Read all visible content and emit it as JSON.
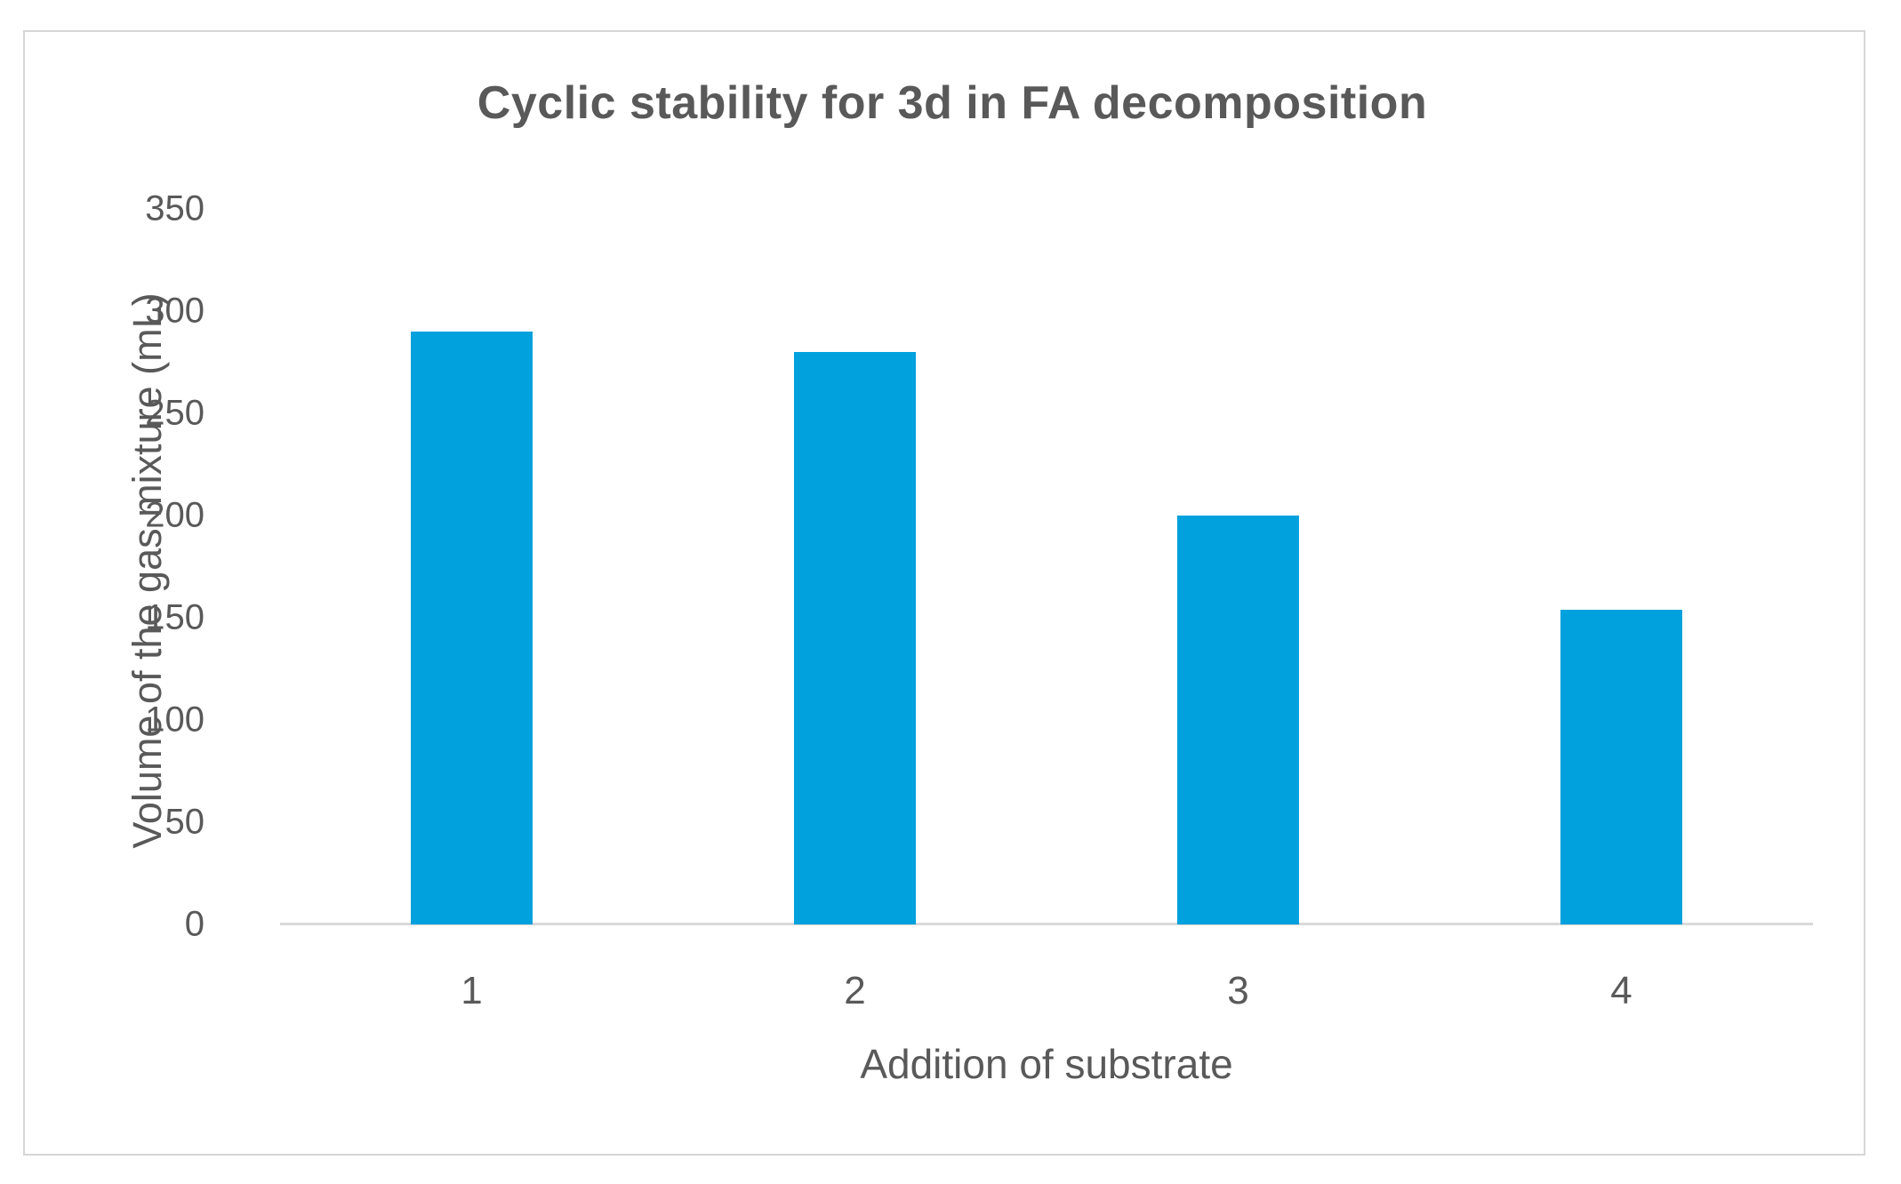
{
  "chart_data": {
    "type": "bar",
    "title": "Cyclic stability for 3d in FA decomposition",
    "xlabel": "Addition of substrate",
    "ylabel": "Volume of the gas mixture (mL)",
    "categories": [
      "1",
      "2",
      "3",
      "4"
    ],
    "values": [
      290,
      280,
      200,
      154
    ],
    "ylim": [
      0,
      350
    ],
    "ytick_step": 50,
    "yticks": [
      0,
      50,
      100,
      150,
      200,
      250,
      300,
      350
    ],
    "grid": false,
    "legend": false,
    "bar_color": "#00a1dc",
    "axis_line_color": "#d9d9d9",
    "text_color": "#595959",
    "frame_border_color": "#d6d6d6",
    "background_color": "#ffffff"
  }
}
